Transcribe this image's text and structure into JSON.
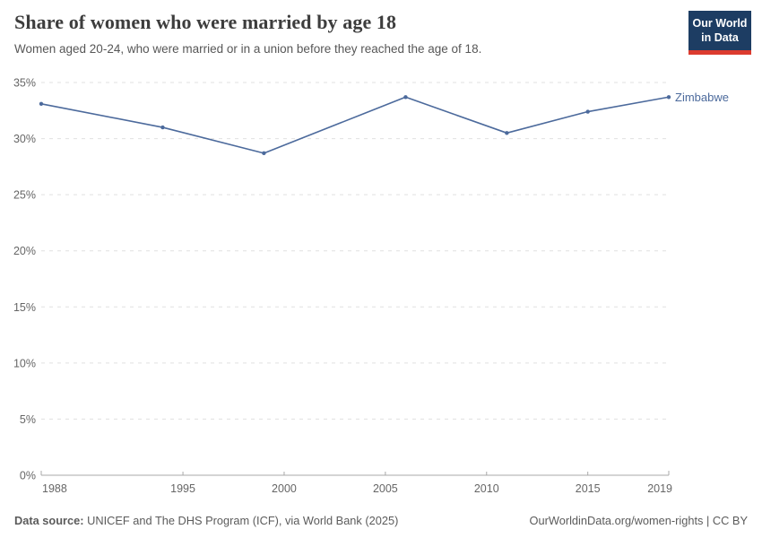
{
  "header": {
    "title": "Share of women who were married by age 18",
    "subtitle": "Women aged 20-24, who were married or in a union before they reached the age of 18.",
    "logo": {
      "line1": "Our World",
      "line2": "in Data",
      "bg_color": "#1d3d63",
      "accent_color": "#dc3b2f"
    }
  },
  "chart_data": {
    "type": "line",
    "title": "Share of women who were married by age 18",
    "subtitle": "Women aged 20-24, who were married or in a union before they reached the age of 18.",
    "series": [
      {
        "name": "Zimbabwe",
        "color": "#4c6a9c",
        "x": [
          1988,
          1994,
          1999,
          2006,
          2011,
          2015,
          2019
        ],
        "values": [
          33.1,
          31.0,
          28.7,
          33.7,
          30.5,
          32.4,
          33.7
        ]
      }
    ],
    "end_label": "Zimbabwe",
    "x_ticks": [
      1988,
      1995,
      2000,
      2005,
      2010,
      2015,
      2019
    ],
    "y_ticks": [
      0,
      5,
      10,
      15,
      20,
      25,
      30,
      35
    ],
    "y_tick_suffix": "%",
    "xlim": [
      1988,
      2019
    ],
    "ylim": [
      0,
      35
    ],
    "grid": "horizontal-dashed",
    "legend_position": "end-of-line"
  },
  "footer": {
    "source_label": "Data source:",
    "source_text": " UNICEF and The DHS Program (ICF), via World Bank (2025)",
    "link_text": "OurWorldinData.org/women-rights | CC BY"
  }
}
